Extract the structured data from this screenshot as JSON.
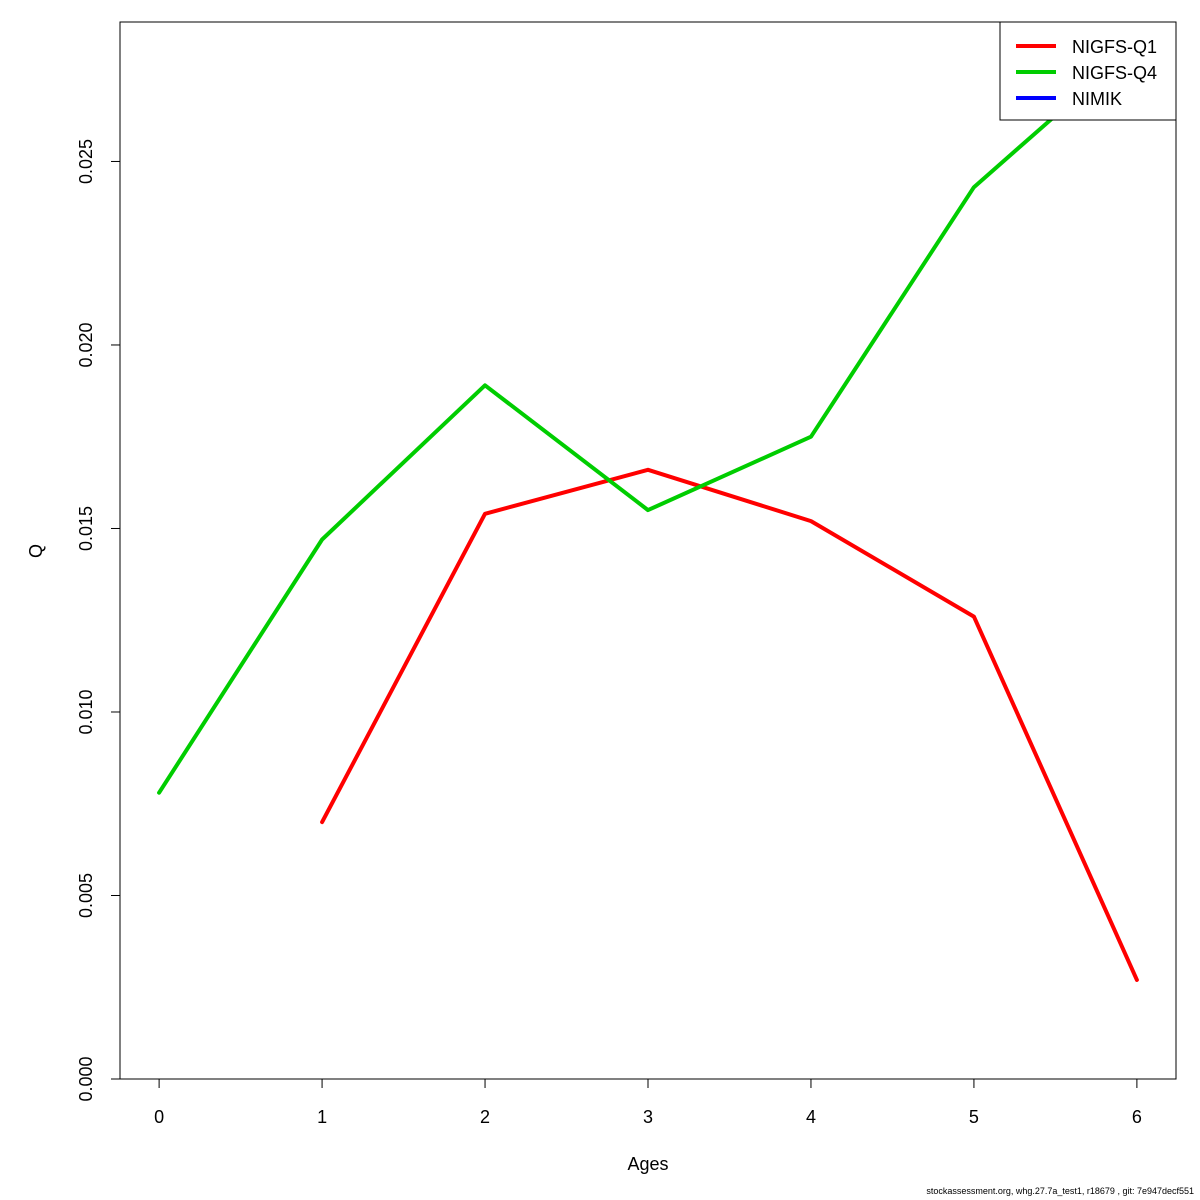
{
  "chart_data": {
    "type": "line",
    "xlabel": "Ages",
    "ylabel": "Q",
    "xlim": [
      -0.24,
      6.24
    ],
    "ylim": [
      0.0,
      0.0288
    ],
    "x_ticks": [
      0,
      1,
      2,
      3,
      4,
      5,
      6
    ],
    "x_tick_labels": [
      "0",
      "1",
      "2",
      "3",
      "4",
      "5",
      "6"
    ],
    "y_ticks": [
      0.0,
      0.005,
      0.01,
      0.015,
      0.02,
      0.025
    ],
    "y_tick_labels": [
      "0.000",
      "0.005",
      "0.010",
      "0.015",
      "0.020",
      "0.025"
    ],
    "grid": false,
    "legend_position": "top-right",
    "series": [
      {
        "name": "NIGFS-Q1",
        "color": "#ff0000",
        "x": [
          1,
          2,
          3,
          4,
          5,
          6
        ],
        "values": [
          0.007,
          0.0154,
          0.0166,
          0.0152,
          0.0126,
          0.0027
        ]
      },
      {
        "name": "NIGFS-Q4",
        "color": "#00cd00",
        "x": [
          0,
          1,
          2,
          3,
          4,
          5,
          6
        ],
        "values": [
          0.0078,
          0.0147,
          0.0189,
          0.0155,
          0.0175,
          0.0243,
          0.0282
        ]
      },
      {
        "name": "NIMIK",
        "color": "#0000ff",
        "x": [],
        "values": []
      }
    ]
  },
  "footer": {
    "text": "stockassessment.org, whg.27.7a_test1, r18679 , git: 7e947decf551"
  }
}
